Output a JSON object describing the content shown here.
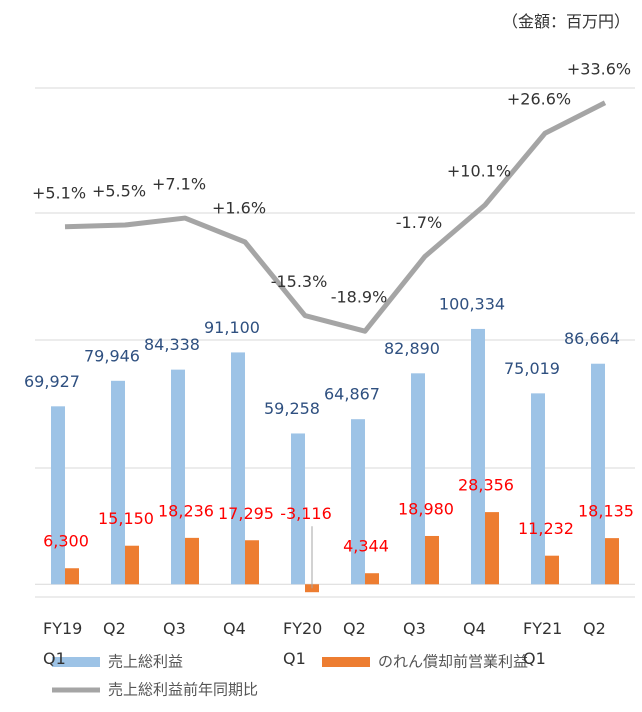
{
  "chart_data": {
    "type": "bar",
    "note": "（金額：百万円）",
    "categories": [
      "FY19 Q1",
      "Q2",
      "Q3",
      "Q4",
      "FY20 Q1",
      "Q2",
      "Q3",
      "Q4",
      "FY21 Q1",
      "Q2"
    ],
    "ylim": [
      -5000,
      195000
    ],
    "y2lim": [
      -80,
      37
    ],
    "series": [
      {
        "name": "売上総利益",
        "type": "bar",
        "color": "#9dc3e6",
        "label_color": "#2f5080",
        "values": [
          69927,
          79946,
          84338,
          91100,
          59258,
          64867,
          82890,
          100334,
          75019,
          86664
        ],
        "value_labels": [
          "69,927",
          "79,946",
          "84,338",
          "91,100",
          "59,258",
          "64,867",
          "82,890",
          "100,334",
          "75,019",
          "86,664"
        ]
      },
      {
        "name": "のれん償却前営業利益",
        "type": "bar",
        "color": "#ed7d31",
        "label_color": "#ff0000",
        "values": [
          6300,
          15150,
          18236,
          17295,
          -3116,
          4344,
          18980,
          28356,
          11232,
          18135
        ],
        "value_labels": [
          "6,300",
          "15,150",
          "18,236",
          "17,295",
          "-3,116",
          "4,344",
          "18,980",
          "28,356",
          "11,232",
          "18,135"
        ]
      },
      {
        "name": "売上総利益前年同期比",
        "type": "line",
        "axis": "y2",
        "color": "#a5a5a5",
        "label_color": "#333333",
        "values": [
          5.1,
          5.5,
          7.1,
          1.6,
          -15.3,
          -18.9,
          -1.7,
          10.1,
          26.6,
          33.6
        ],
        "value_labels": [
          "+5.1%",
          "+5.5%",
          "+7.1%",
          "+1.6%",
          "-15.3%",
          "-18.9%",
          "-1.7%",
          "+10.1%",
          "+26.6%",
          "+33.6%"
        ]
      }
    ]
  }
}
